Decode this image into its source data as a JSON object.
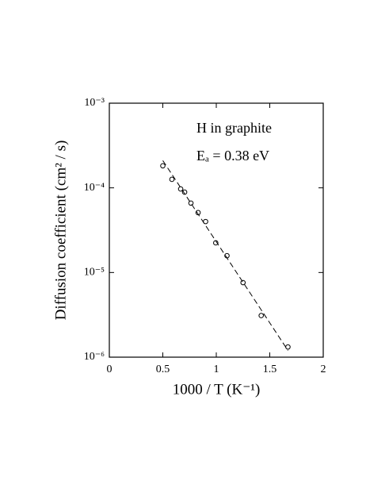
{
  "chart_data": {
    "type": "scatter",
    "xlabel": "1000 / T  (K⁻¹)",
    "ylabel": "Diffusion  coefficient  (cm² / s)",
    "annotations": [
      "H  in  graphite",
      "Eₐ = 0.38 eV"
    ],
    "x": [
      0.5,
      0.585,
      0.667,
      0.704,
      0.763,
      0.83,
      0.9,
      0.995,
      1.1,
      1.25,
      1.42,
      1.67
    ],
    "values": [
      0.000182,
      0.000126,
      9.7e-05,
      8.9e-05,
      6.6e-05,
      5.1e-05,
      4e-05,
      2.24e-05,
      1.58e-05,
      7.6e-06,
      3.1e-06,
      1.32e-06
    ],
    "fit": {
      "x": [
        0.5,
        1.67
      ],
      "values": [
        0.00021,
        1.2e-06
      ]
    },
    "color": "#000000",
    "xlim": [
      0,
      2
    ],
    "xticks": [
      0,
      0.5,
      1,
      1.5,
      2
    ],
    "ylim": [
      1e-06,
      0.001
    ],
    "ylog": true,
    "yticks": [
      {
        "value": 1e-06,
        "label": "10⁻⁶"
      },
      {
        "value": 1e-05,
        "label": "10⁻⁵"
      },
      {
        "value": 0.0001,
        "label": "10⁻⁴"
      },
      {
        "value": 0.001,
        "label": "10⁻³"
      }
    ]
  }
}
